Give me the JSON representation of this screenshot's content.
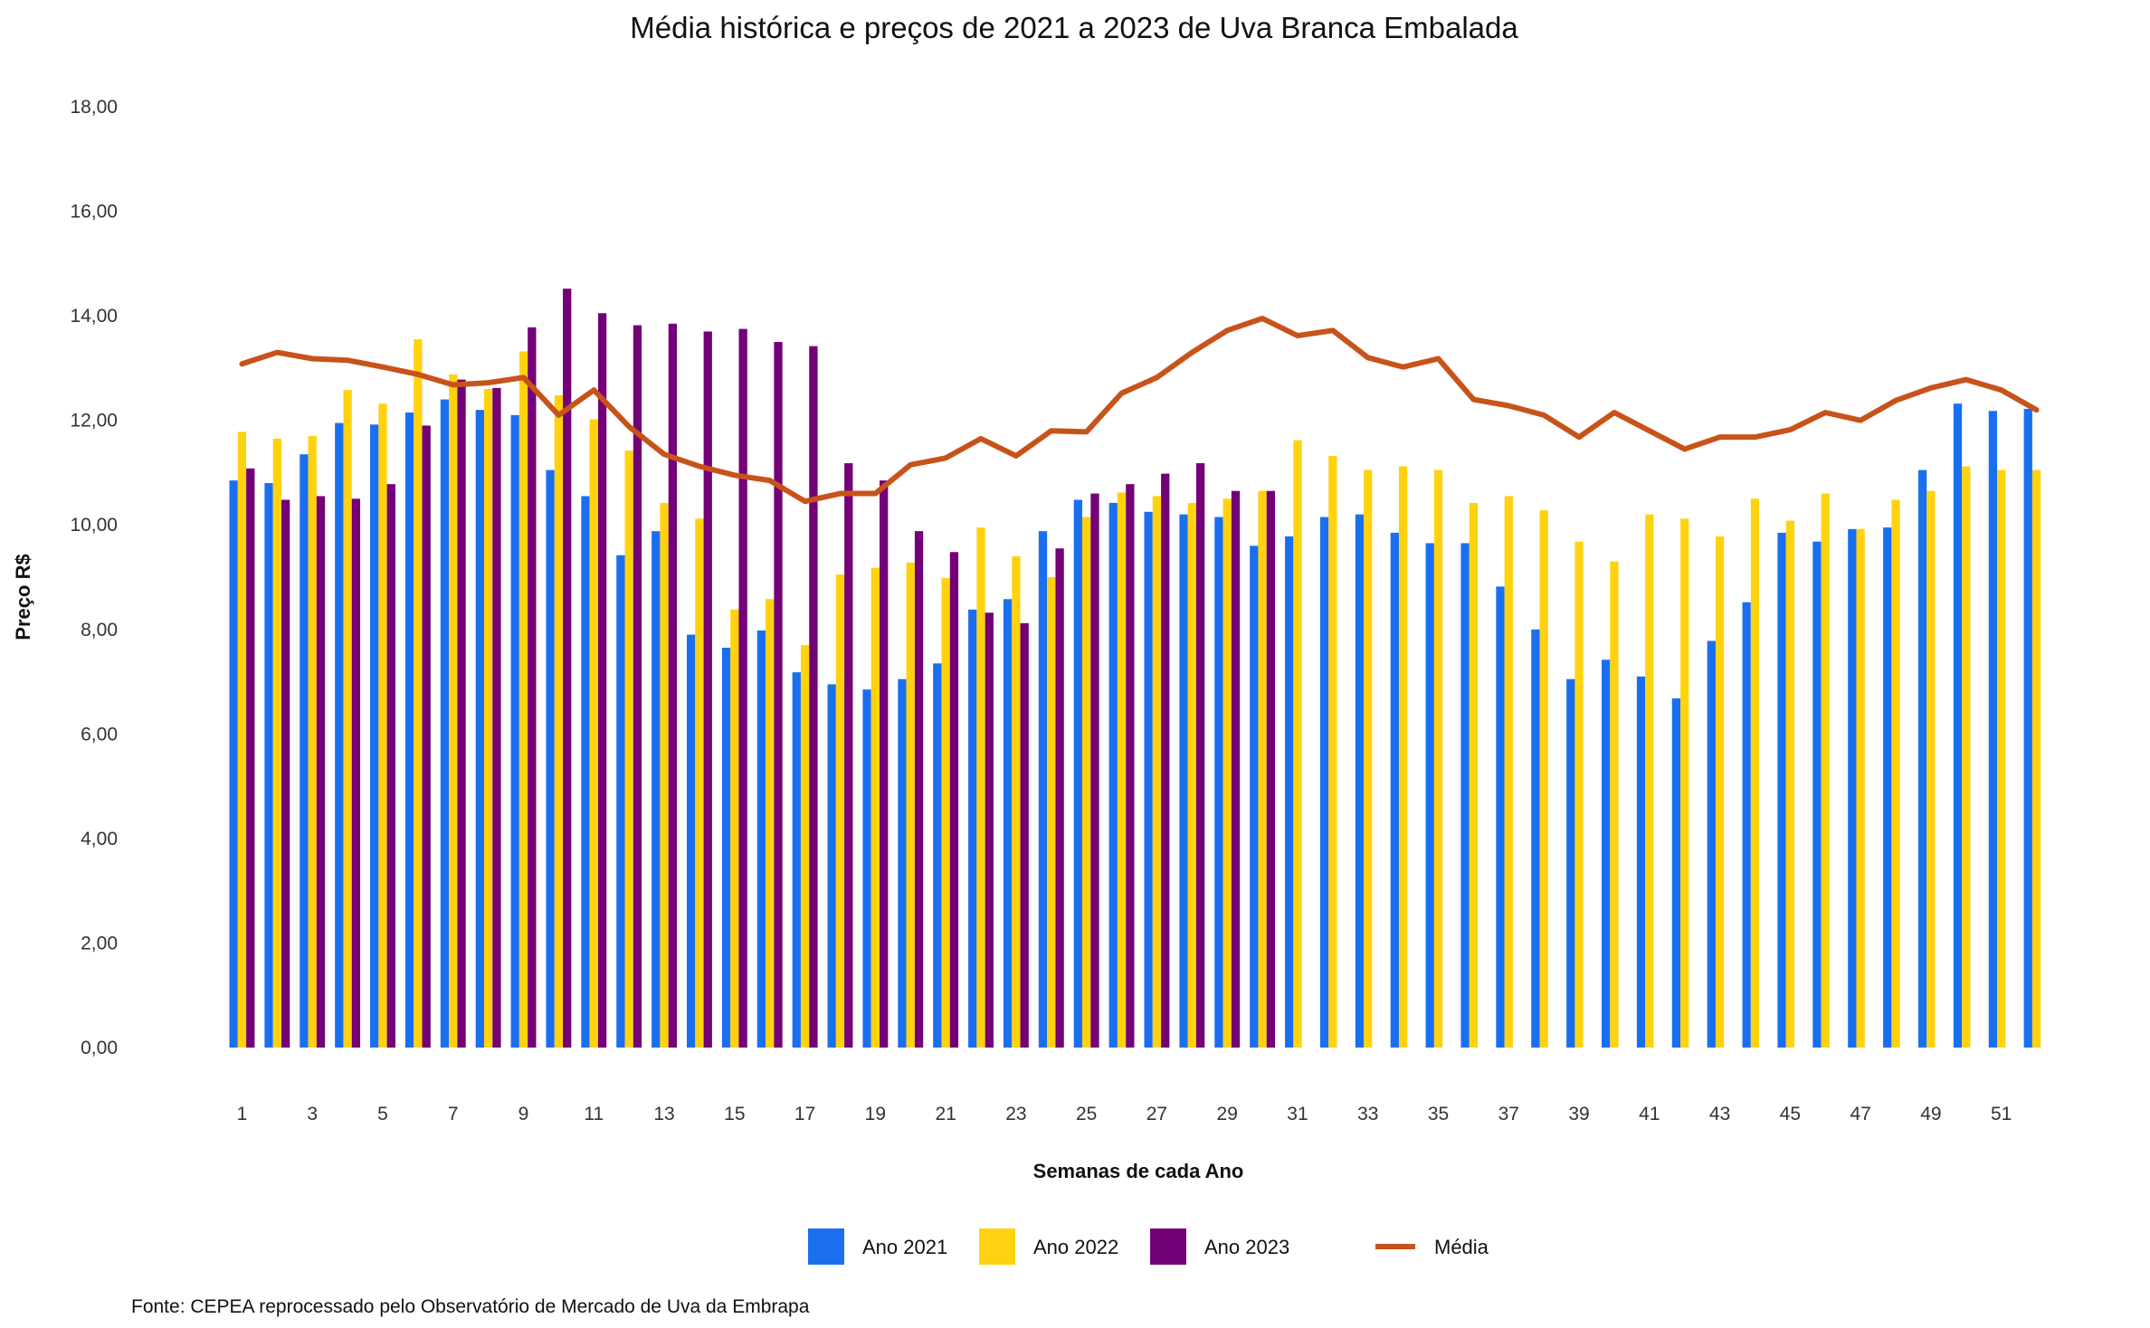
{
  "chart_data": {
    "type": "bar",
    "title": "Média histórica e preços de 2021 a 2023 de Uva Branca Embalada",
    "xlabel": "Semanas de cada Ano",
    "ylabel": "Preço R$",
    "ylim": [
      0,
      18
    ],
    "yticks": [
      "0,00",
      "2,00",
      "4,00",
      "6,00",
      "8,00",
      "10,00",
      "12,00",
      "14,00",
      "16,00",
      "18,00"
    ],
    "categories": [
      1,
      2,
      3,
      4,
      5,
      6,
      7,
      8,
      9,
      10,
      11,
      12,
      13,
      14,
      15,
      16,
      17,
      18,
      19,
      20,
      21,
      22,
      23,
      24,
      25,
      26,
      27,
      28,
      29,
      30,
      31,
      32,
      33,
      34,
      35,
      36,
      37,
      38,
      39,
      40,
      41,
      42,
      43,
      44,
      45,
      46,
      47,
      48,
      49,
      50,
      51,
      52
    ],
    "xtick_labels": [
      "1",
      "3",
      "5",
      "7",
      "9",
      "11",
      "13",
      "15",
      "17",
      "19",
      "21",
      "23",
      "25",
      "27",
      "29",
      "31",
      "33",
      "35",
      "37",
      "39",
      "41",
      "43",
      "45",
      "47",
      "49",
      "51"
    ],
    "grid": false,
    "legend_position": "bottom",
    "series": [
      {
        "name": "Ano 2021",
        "type": "bar",
        "color": "#1a6ff0",
        "values": [
          10.85,
          10.8,
          11.35,
          11.95,
          11.92,
          12.15,
          12.4,
          12.2,
          12.1,
          11.05,
          10.55,
          9.42,
          9.88,
          7.9,
          7.65,
          7.98,
          7.18,
          6.95,
          6.85,
          7.05,
          7.35,
          8.38,
          8.58,
          9.88,
          10.48,
          10.42,
          10.25,
          10.2,
          10.15,
          9.6,
          9.78,
          10.15,
          10.2,
          9.85,
          9.65,
          9.65,
          8.82,
          8.0,
          7.05,
          7.42,
          7.1,
          6.68,
          7.78,
          8.52,
          9.85,
          9.68,
          9.92,
          9.95,
          11.05,
          12.32,
          12.18,
          12.22
        ]
      },
      {
        "name": "Ano 2022",
        "type": "bar",
        "color": "#ffd20f",
        "values": [
          11.78,
          11.65,
          11.7,
          12.58,
          12.32,
          13.55,
          12.88,
          12.6,
          13.32,
          12.48,
          12.02,
          11.42,
          10.42,
          10.12,
          8.38,
          8.58,
          7.7,
          9.05,
          9.18,
          9.28,
          8.98,
          9.95,
          9.4,
          9.0,
          10.15,
          10.62,
          10.55,
          10.42,
          10.5,
          10.65,
          11.62,
          11.32,
          11.05,
          11.12,
          11.05,
          10.42,
          10.55,
          10.28,
          9.68,
          9.3,
          10.2,
          10.12,
          9.78,
          10.5,
          10.08,
          10.6,
          9.92,
          10.48,
          10.65,
          11.12,
          11.05,
          11.05
        ]
      },
      {
        "name": "Ano 2023",
        "type": "bar",
        "color": "#740077",
        "values": [
          11.08,
          10.48,
          10.55,
          10.5,
          10.78,
          11.9,
          12.78,
          12.62,
          13.78,
          14.52,
          14.05,
          13.82,
          13.85,
          13.7,
          13.75,
          13.5,
          13.42,
          11.18,
          10.85,
          9.88,
          9.48,
          8.32,
          8.12,
          9.55,
          10.6,
          10.78,
          10.98,
          11.18,
          10.65,
          10.65,
          null,
          null,
          null,
          null,
          null,
          null,
          null,
          null,
          null,
          null,
          null,
          null,
          null,
          null,
          null,
          null,
          null,
          null,
          null,
          null,
          null,
          null
        ]
      },
      {
        "name": "Média",
        "type": "line",
        "color": "#c8531a",
        "values": [
          13.08,
          13.3,
          13.18,
          13.15,
          13.02,
          12.88,
          12.68,
          12.72,
          12.82,
          12.1,
          12.58,
          11.88,
          11.35,
          11.12,
          10.95,
          10.85,
          10.45,
          10.6,
          10.6,
          11.15,
          11.28,
          11.65,
          11.32,
          11.8,
          11.78,
          12.52,
          12.82,
          13.3,
          13.72,
          13.95,
          13.62,
          13.72,
          13.2,
          13.02,
          13.18,
          12.4,
          12.28,
          12.1,
          11.68,
          12.15,
          11.8,
          11.45,
          11.68,
          11.68,
          11.82,
          12.15,
          12.0,
          12.38,
          12.62,
          12.78,
          12.58,
          12.2
        ]
      }
    ],
    "source": "Fonte: CEPEA reprocessado pelo Observatório de Mercado de Uva da Embrapa"
  }
}
